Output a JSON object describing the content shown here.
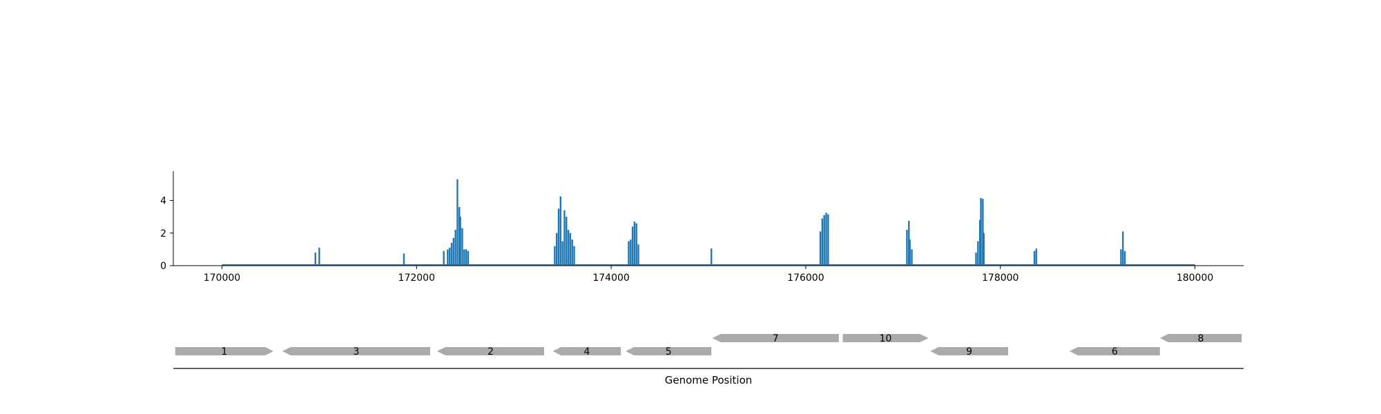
{
  "chart_data": [
    {
      "type": "bar",
      "title": "",
      "xlabel": "",
      "ylabel": "",
      "xlim": [
        169500,
        180500
      ],
      "ylim": [
        0,
        5.8
      ],
      "xticks": [
        170000,
        172000,
        174000,
        176000,
        178000,
        180000
      ],
      "xtick_labels": [
        "170000",
        "172000",
        "174000",
        "176000",
        "178000",
        "180000"
      ],
      "yticks": [
        0,
        2,
        4
      ],
      "ytick_labels": [
        "0",
        "2",
        "4"
      ],
      "grid": false,
      "color": "#1f77b4",
      "baseline": {
        "x_start": 170000,
        "x_end": 180000,
        "value": 0
      },
      "series": [
        {
          "values": [
            [
              170960,
              0.8
            ],
            [
              171000,
              1.1
            ],
            [
              171870,
              0.75
            ],
            [
              172280,
              0.9
            ],
            [
              172320,
              1.0
            ],
            [
              172340,
              1.1
            ],
            [
              172360,
              1.4
            ],
            [
              172380,
              1.7
            ],
            [
              172400,
              2.2
            ],
            [
              172420,
              5.3
            ],
            [
              172440,
              3.6
            ],
            [
              172450,
              3.0
            ],
            [
              172470,
              2.3
            ],
            [
              172490,
              1.0
            ],
            [
              172510,
              1.0
            ],
            [
              172530,
              0.9
            ],
            [
              173420,
              1.2
            ],
            [
              173440,
              2.0
            ],
            [
              173460,
              3.5
            ],
            [
              173480,
              4.25
            ],
            [
              173500,
              1.5
            ],
            [
              173520,
              3.4
            ],
            [
              173540,
              3.0
            ],
            [
              173560,
              2.2
            ],
            [
              173580,
              2.0
            ],
            [
              173600,
              1.6
            ],
            [
              173620,
              1.2
            ],
            [
              174180,
              1.5
            ],
            [
              174200,
              1.6
            ],
            [
              174220,
              2.4
            ],
            [
              174240,
              2.7
            ],
            [
              174260,
              2.6
            ],
            [
              174280,
              1.3
            ],
            [
              175030,
              1.05
            ],
            [
              176150,
              2.1
            ],
            [
              176170,
              2.9
            ],
            [
              176190,
              3.1
            ],
            [
              176210,
              3.25
            ],
            [
              176230,
              3.15
            ],
            [
              177040,
              2.2
            ],
            [
              177060,
              2.75
            ],
            [
              177070,
              1.6
            ],
            [
              177090,
              1.0
            ],
            [
              177750,
              0.8
            ],
            [
              177770,
              1.5
            ],
            [
              177790,
              2.8
            ],
            [
              177800,
              4.15
            ],
            [
              177820,
              4.1
            ],
            [
              177830,
              2.0
            ],
            [
              178350,
              0.9
            ],
            [
              178370,
              1.05
            ],
            [
              179240,
              1.0
            ],
            [
              179260,
              2.1
            ],
            [
              179280,
              0.9
            ]
          ]
        }
      ]
    },
    {
      "type": "gene-track",
      "xlabel": "Genome Position",
      "xlim": [
        169500,
        180500
      ],
      "color": "#aaaaaa",
      "genes": [
        {
          "label": "1",
          "start": 169520,
          "end": 170530,
          "strand": "+",
          "row": 0
        },
        {
          "label": "3",
          "start": 170620,
          "end": 172140,
          "strand": "-",
          "row": 0
        },
        {
          "label": "2",
          "start": 172210,
          "end": 173310,
          "strand": "-",
          "row": 0
        },
        {
          "label": "4",
          "start": 173400,
          "end": 174100,
          "strand": "-",
          "row": 0
        },
        {
          "label": "5",
          "start": 174150,
          "end": 175030,
          "strand": "-",
          "row": 0
        },
        {
          "label": "7",
          "start": 175040,
          "end": 176340,
          "strand": "-",
          "row": 1
        },
        {
          "label": "10",
          "start": 176380,
          "end": 177260,
          "strand": "+",
          "row": 1
        },
        {
          "label": "9",
          "start": 177280,
          "end": 178080,
          "strand": "-",
          "row": 0
        },
        {
          "label": "6",
          "start": 178710,
          "end": 179640,
          "strand": "-",
          "row": 0
        },
        {
          "label": "8",
          "start": 179640,
          "end": 180480,
          "strand": "-",
          "row": 1
        }
      ]
    }
  ]
}
